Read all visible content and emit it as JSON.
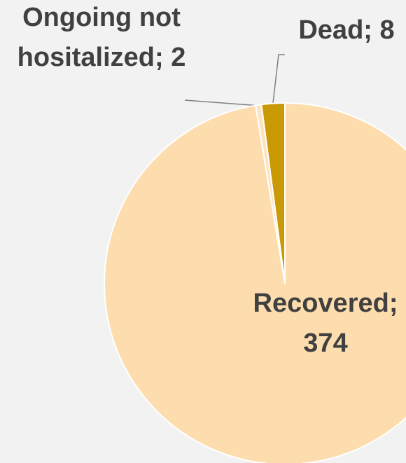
{
  "chart_data": {
    "type": "pie",
    "values": [
      8,
      2,
      374
    ],
    "value_labels": [
      [
        "Dead; 8"
      ],
      [
        "Ongoing not",
        "hositalized; 2"
      ],
      [
        "Recovered;",
        "374"
      ]
    ],
    "colors": [
      "#c99a06",
      "#fde3bf",
      "#fddcae"
    ]
  }
}
